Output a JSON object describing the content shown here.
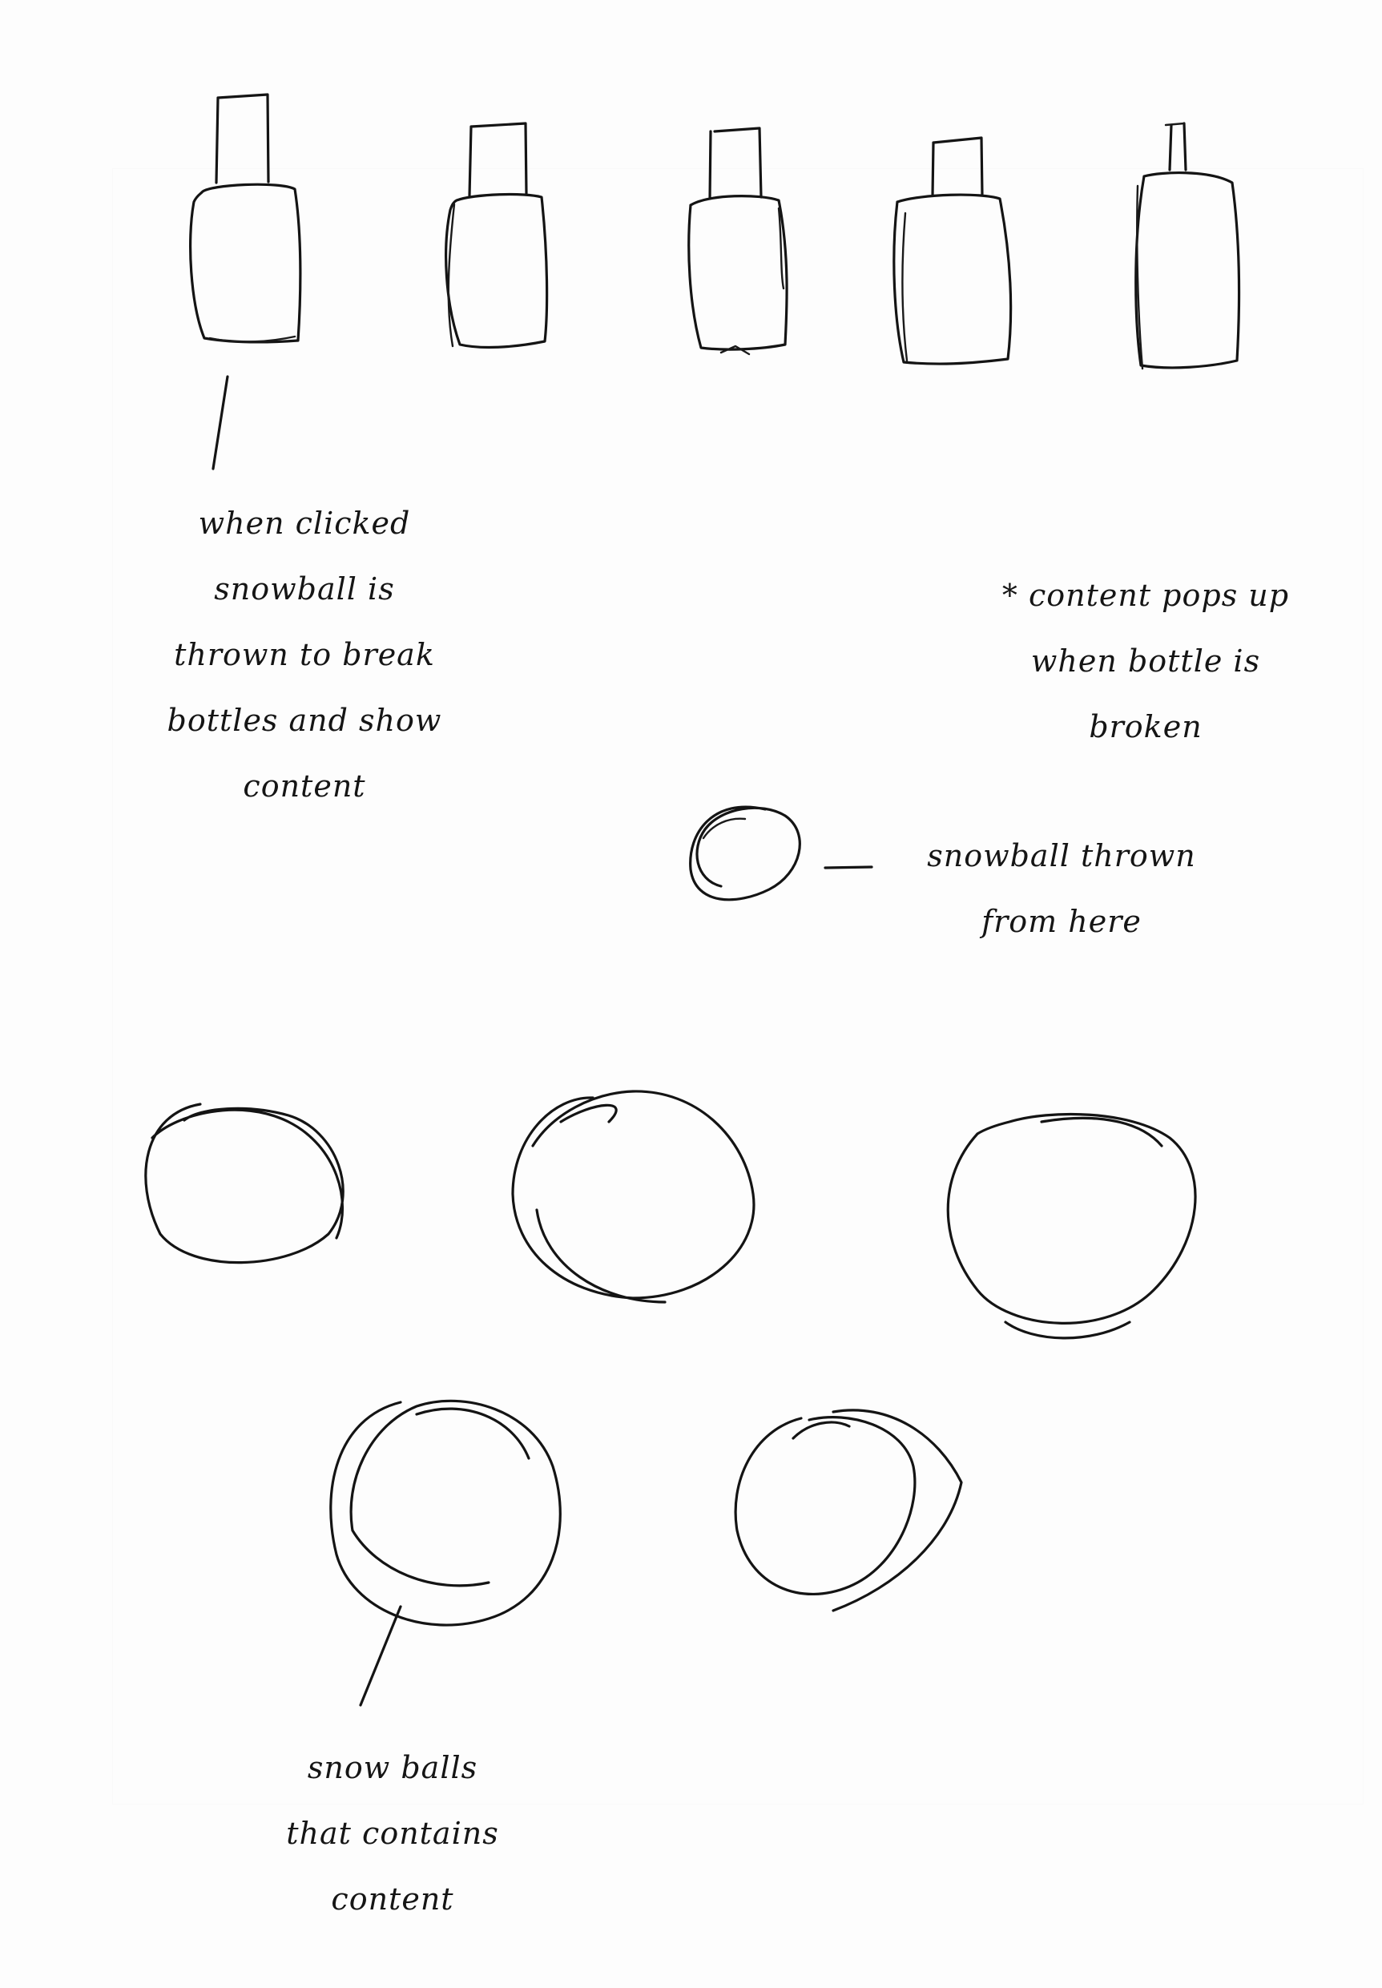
{
  "annotations": {
    "bottles_note": "when clicked\nsnowball is\nthrown to break\nbottles and show\ncontent",
    "popup_note": "* content pops up\nwhen bottle is\nbroken",
    "thrower_note": "snowball thrown\nfrom here",
    "snowballs_note": "snow balls\nthat contains\ncontent"
  },
  "bottles": [
    {
      "id": "bottle-1"
    },
    {
      "id": "bottle-2"
    },
    {
      "id": "bottle-3"
    },
    {
      "id": "bottle-4"
    },
    {
      "id": "bottle-5"
    }
  ],
  "snowballs": [
    {
      "id": "snowball-1"
    },
    {
      "id": "snowball-2"
    },
    {
      "id": "snowball-3"
    },
    {
      "id": "snowball-4"
    },
    {
      "id": "snowball-5"
    }
  ],
  "colors": {
    "paper": "#fdfdfd",
    "ink": "#141414"
  }
}
